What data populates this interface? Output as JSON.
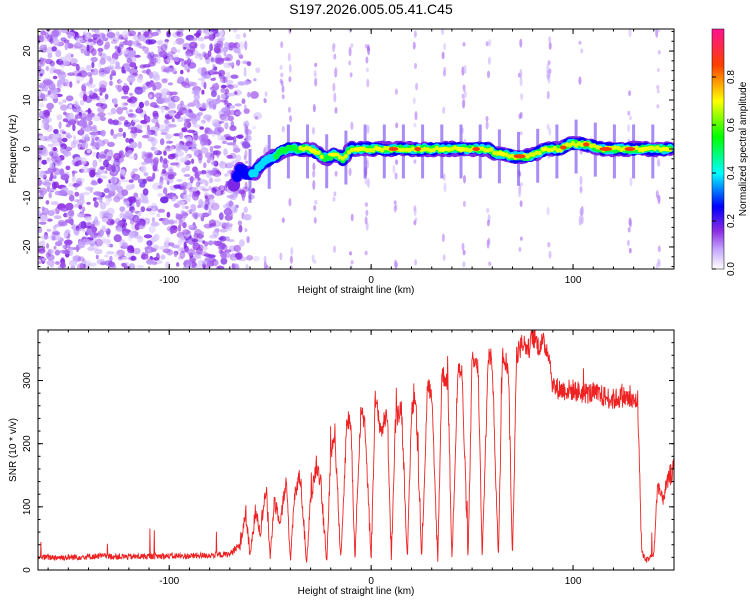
{
  "title": "S197.2026.005.05.41.C45",
  "chart_data": [
    {
      "type": "heatmap",
      "xlabel": "Height of straight line (km)",
      "ylabel": "Frequency (Hz)",
      "xlim": [
        -165,
        150
      ],
      "ylim": [
        -24.5,
        24.5
      ],
      "xticks": [
        -100,
        0,
        100
      ],
      "yticks": [
        -20,
        -10,
        0,
        10,
        20
      ],
      "colorbar": {
        "label": "Normalized spectral amplitude",
        "ticks": [
          0.0,
          0.2,
          0.4,
          0.6,
          0.8
        ],
        "range": [
          0,
          1
        ],
        "colors": [
          "#ffffff",
          "#8a2be2",
          "#0000ff",
          "#00ffff",
          "#00ff00",
          "#ffff00",
          "#ff0000",
          "#ff1493"
        ]
      },
      "ridge": {
        "x": [
          -68,
          -65,
          -62,
          -58,
          -54,
          -50,
          -46,
          -42,
          -38,
          -34,
          -30,
          -26,
          -22,
          -18,
          -14,
          -10,
          -6,
          -2,
          2,
          6,
          10,
          14,
          18,
          22,
          26,
          30,
          34,
          38,
          42,
          46,
          50,
          54,
          58,
          62,
          66,
          70,
          74,
          78,
          82,
          86,
          90,
          94,
          98,
          102,
          106,
          110,
          114,
          118,
          122,
          126,
          130,
          134,
          138,
          142,
          146
        ],
        "y": [
          -7,
          -4,
          -5,
          -5,
          -3,
          -2,
          -1,
          0,
          0,
          0,
          0,
          -1,
          -2,
          -1,
          -2,
          0,
          0,
          0,
          0,
          0,
          0,
          0,
          0,
          0,
          0,
          0,
          0,
          0,
          0,
          0,
          0,
          0,
          0,
          -1,
          -1,
          -1.5,
          -1.5,
          -1.5,
          -1,
          0,
          0,
          0,
          1,
          1,
          1,
          0.5,
          0,
          0,
          0,
          0,
          0,
          0,
          0,
          0,
          0
        ],
        "amplitude": [
          0.3,
          0.35,
          0.4,
          0.45,
          0.5,
          0.55,
          0.6,
          0.65,
          0.7,
          0.75,
          0.8,
          0.75,
          0.7,
          0.7,
          0.75,
          0.8,
          0.85,
          0.9,
          0.9,
          0.9,
          0.95,
          0.95,
          0.9,
          0.95,
          0.95,
          0.9,
          0.85,
          0.8,
          0.85,
          0.9,
          0.9,
          0.95,
          0.9,
          0.85,
          0.85,
          0.9,
          0.95,
          0.95,
          0.9,
          0.85,
          0.85,
          0.9,
          0.95,
          0.95,
          0.95,
          0.9,
          0.9,
          0.95,
          0.95,
          0.95,
          0.9,
          0.85,
          0.85,
          0.85,
          0.85
        ]
      }
    },
    {
      "type": "line",
      "xlabel": "Height of straight line (km)",
      "ylabel": "SNR (10 * v/v)",
      "xlim": [
        -165,
        150
      ],
      "ylim": [
        0,
        380
      ],
      "xticks": [
        -100,
        0,
        100
      ],
      "yticks": [
        0,
        100,
        200,
        300
      ],
      "color": "#ee2222",
      "series": [
        {
          "name": "SNR",
          "x": [
            -165,
            -150,
            -135,
            -120,
            -105,
            -90,
            -75,
            -70,
            -65,
            -62,
            -60,
            -57,
            -55,
            -52,
            -50,
            -48,
            -45,
            -42,
            -40,
            -38,
            -35,
            -32,
            -30,
            -27,
            -25,
            -22,
            -20,
            -18,
            -15,
            -12,
            -10,
            -8,
            -5,
            -3,
            0,
            2,
            5,
            8,
            10,
            12,
            15,
            18,
            20,
            22,
            25,
            28,
            30,
            33,
            35,
            38,
            40,
            43,
            45,
            48,
            50,
            53,
            55,
            58,
            60,
            63,
            65,
            68,
            70,
            72,
            75,
            78,
            80,
            83,
            85,
            88,
            90,
            95,
            100,
            105,
            110,
            115,
            120,
            125,
            130,
            132,
            134,
            136,
            138,
            140,
            142,
            144,
            146,
            148,
            150
          ],
          "y": [
            20,
            20,
            22,
            21,
            22,
            22,
            24,
            25,
            40,
            90,
            20,
            100,
            60,
            130,
            20,
            110,
            80,
            140,
            15,
            120,
            150,
            10,
            110,
            170,
            140,
            10,
            180,
            220,
            15,
            240,
            230,
            15,
            260,
            230,
            15,
            270,
            220,
            250,
            15,
            230,
            260,
            15,
            250,
            280,
            15,
            300,
            270,
            15,
            310,
            300,
            15,
            320,
            310,
            15,
            330,
            320,
            15,
            340,
            330,
            15,
            345,
            320,
            15,
            340,
            360,
            350,
            370,
            355,
            360,
            345,
            290,
            285,
            285,
            280,
            280,
            275,
            270,
            275,
            265,
            270,
            30,
            15,
            20,
            25,
            140,
            110,
            130,
            150,
            160
          ]
        }
      ]
    }
  ]
}
